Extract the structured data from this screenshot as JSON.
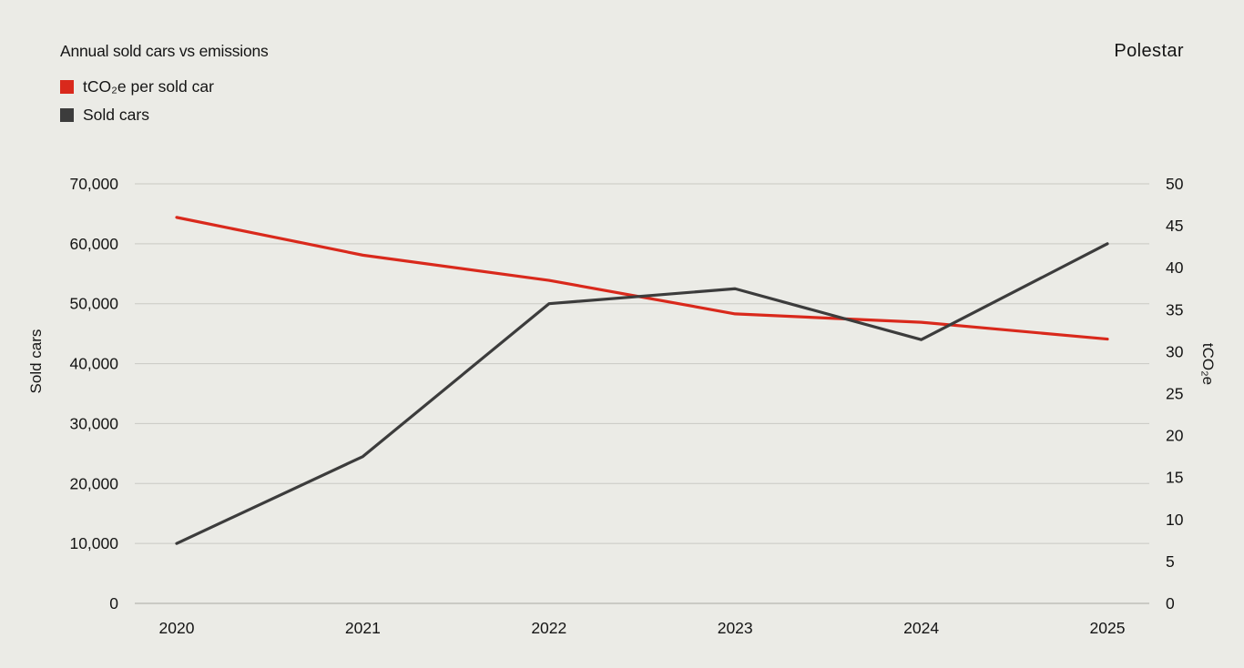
{
  "page": {
    "title": "Annual sold cars vs emissions",
    "brand": "Polestar"
  },
  "legend": [
    {
      "label": "tCO₂e per sold car",
      "color": "#d9291c",
      "icon": "red-square-swatch"
    },
    {
      "label": "Sold cars",
      "color": "#3c3c3c",
      "icon": "dark-square-swatch"
    }
  ],
  "chart_data": {
    "type": "line",
    "title": "Annual sold cars vs emissions",
    "categories": [
      "2020",
      "2021",
      "2022",
      "2023",
      "2024",
      "2025"
    ],
    "series": [
      {
        "name": "tCO₂e per sold car",
        "axis": "right",
        "color": "#d9291c",
        "values": [
          46,
          41.5,
          38.5,
          34.5,
          33.5,
          31.5
        ]
      },
      {
        "name": "Sold cars",
        "axis": "left",
        "color": "#3c3c3c",
        "values": [
          10000,
          24500,
          50000,
          52500,
          44000,
          60000
        ]
      }
    ],
    "left_axis": {
      "label": "Sold cars",
      "min": 0,
      "max": 70000,
      "step": 10000,
      "ticks": [
        "0",
        "10,000",
        "20,000",
        "30,000",
        "40,000",
        "50,000",
        "60,000",
        "70,000"
      ]
    },
    "right_axis": {
      "label": "tCO₂e",
      "min": 0,
      "max": 50,
      "step": 5,
      "ticks": [
        "0",
        "5",
        "10",
        "15",
        "20",
        "25",
        "30",
        "35",
        "40",
        "45",
        "50"
      ]
    },
    "grid": true,
    "legend_position": "top-left"
  },
  "colors": {
    "background": "#ebebe6",
    "grid": "#c9c9c3",
    "baseline": "#a9a9a2",
    "text": "#141414"
  }
}
